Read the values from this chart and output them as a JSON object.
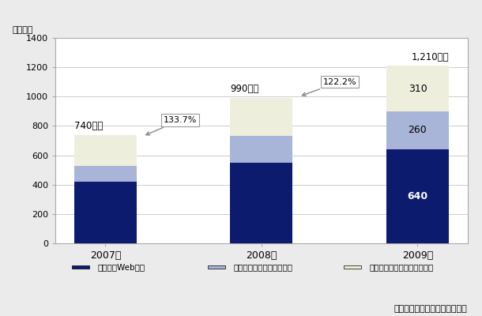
{
  "years": [
    "2007年",
    "2008年",
    "2009年"
  ],
  "web": [
    420,
    550,
    640
  ],
  "listing": [
    110,
    185,
    260
  ],
  "affiliate": [
    210,
    255,
    310
  ],
  "totals": [
    "740億円",
    "990億円",
    "1,210億円"
  ],
  "total_values": [
    740,
    990,
    1210
  ],
  "growth_rates": [
    "133.7%",
    "122.2%"
  ],
  "colors": {
    "web": "#0d1b6e",
    "listing": "#a8b4d8",
    "affiliate": "#eeeedd"
  },
  "legend_labels": [
    "モバイルWeb広告",
    "モバイルリスティング広告",
    "モバイルアフィリエイト広告"
  ],
  "ylabel": "（億円）",
  "ylim": [
    0,
    1400
  ],
  "yticks": [
    0,
    200,
    400,
    600,
    800,
    1000,
    1200,
    1400
  ],
  "credit": "（シード・プランニング作成）",
  "bg_color": "#ebebeb",
  "plot_bg_color": "#ffffff",
  "bar_width": 0.4,
  "label_only_2009": true
}
